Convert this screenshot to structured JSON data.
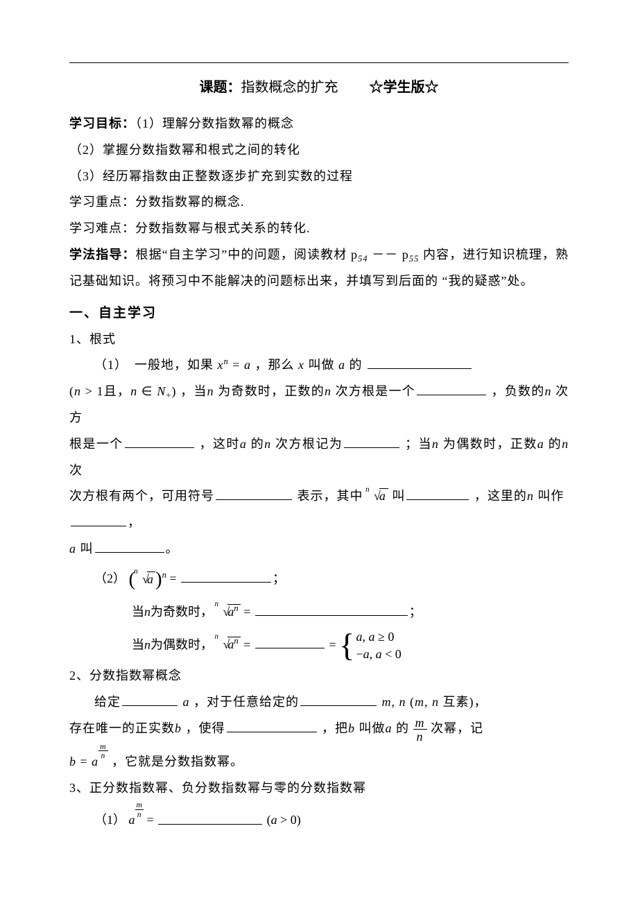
{
  "title": {
    "label": "课题：",
    "text": "指数概念的扩充",
    "version": "☆学生版☆"
  },
  "objectives": {
    "label": "学习目标：",
    "item1": "（1）理解分数指数幂的概念",
    "item2": "（2）掌握分数指数幂和根式之间的转化",
    "item3": "（3）经历幂指数由正整数逐步扩充到实数的过程"
  },
  "keypoint": {
    "label": "学习重点：",
    "text": "分数指数幂的概念."
  },
  "difficulty": {
    "label": "学习难点：",
    "text": "分数指数幂与根式关系的转化."
  },
  "method": {
    "label": "学法指导：",
    "part1": "根据“自主学习”中的问题，阅读教材",
    "pages": "p₅₄－－p₅₅",
    "part2": "内容，进行知识梳理，熟记基础知识。将预习中不能解决的问题标出来，并填写到后面的 “我的疑惑”处。"
  },
  "section1": {
    "heading": "一、自主学习",
    "item1": {
      "num": "1、",
      "title": "根式",
      "p1a": "（1）　一般地，如果",
      "eq1": "xⁿ = a",
      "p1b": "，那么",
      "p1c": "叫做",
      "p1d": "的",
      "p2a_pre": "(",
      "cond": "n > 1且，n ∈ N₊",
      "p2a_post": ")",
      "p2b": "，当",
      "p2c": "为奇数时，正数的",
      "p2d": "次方根是一个",
      "p2e": "，负数的",
      "p2f": "次方根是一个",
      "p2g": "，这时",
      "p2h": "的",
      "p2i": "次方根记为",
      "p2j": "；当",
      "p2k": "为偶数时，正数",
      "p2l": "的",
      "p2m": "次方根有两个，可用符号",
      "p2n": "表示，其中",
      "root_label_txt": "叫",
      "p2o": "，这里的",
      "p2p": "叫作",
      "p2q": "，",
      "p2r": "叫",
      "p2s": "。",
      "eq2pre": "（2）",
      "eq2suf": " = ",
      "semicolon": "；",
      "odd_pre": "当",
      "odd_mid": "为奇数时，",
      "even_pre": "当",
      "even_mid": "为偶数时，",
      "case_top": "a, a ≥ 0",
      "case_bot": "−a, a < 0"
    },
    "item2": {
      "num": "2、",
      "title": "分数指数幂概念",
      "p1a": "给定",
      "p1b": "，对于任意给定的",
      "mn_txt": "m, n (m, n 互素)",
      "comma": "，",
      "p2a": "存在唯一的正实数",
      "p2b": "，使得",
      "p2c": "，把",
      "p2d": "叫做",
      "p2e": "的",
      "p2f": "次幂，记",
      "p3a": "b = a",
      "p3b": "，它就是分数指数幂。"
    },
    "item3": {
      "num": "3、",
      "title": "正分数指数幂、负分数指数幂与零的分数指数幂",
      "p1a": "（1）",
      "eq_suf": " = ",
      "cond": "(a > 0)"
    }
  },
  "vars": {
    "x": "x",
    "n": "n",
    "a": "a",
    "m": "m",
    "b": "b",
    "N": "N"
  }
}
